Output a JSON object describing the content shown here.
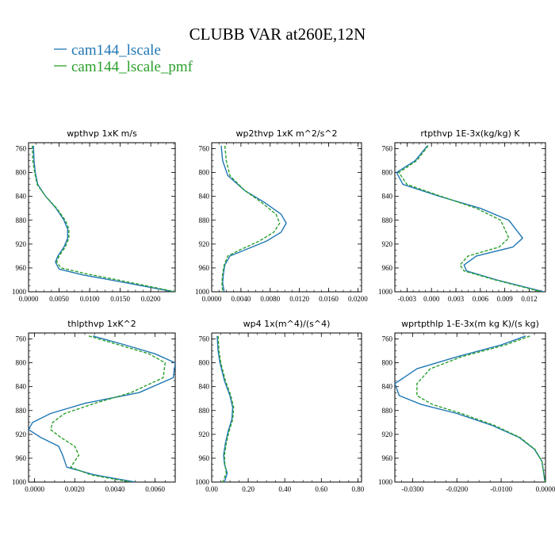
{
  "title": "CLUBB VAR at260E,12N",
  "legend": [
    {
      "name": "cam144_lscale",
      "color": "#1f77b4"
    },
    {
      "name": "cam144_lscale_pmf",
      "color": "#2ca02c"
    }
  ],
  "chart_data": [
    {
      "type": "line",
      "title": "wpthvp  1xK m/s",
      "xlim": [
        0,
        0.024
      ],
      "xticks": [
        "0.0000",
        "0.0050",
        "0.0100",
        "0.0150",
        "0.0200"
      ],
      "xtick_values": [
        0,
        0.005,
        0.01,
        0.015,
        0.02
      ],
      "ylim": [
        1000,
        750
      ],
      "yticks": [
        "760",
        "800",
        "840",
        "880",
        "920",
        "960",
        "1000"
      ],
      "ytick_values": [
        760,
        800,
        840,
        880,
        920,
        960,
        1000
      ],
      "series": [
        {
          "name": "cam144_lscale",
          "color": "#1f77b4",
          "dash": "none",
          "x": [
            0.0008,
            0.0009,
            0.0011,
            0.0015,
            0.0028,
            0.0045,
            0.0058,
            0.0064,
            0.0064,
            0.0058,
            0.0048,
            0.0044,
            0.005,
            0.009,
            0.016,
            0.0237
          ],
          "y": [
            755,
            780,
            800,
            820,
            840,
            860,
            880,
            895,
            910,
            925,
            940,
            950,
            962,
            972,
            985,
            1000
          ]
        },
        {
          "name": "cam144_lscale_pmf",
          "color": "#2ca02c",
          "dash": "4 2",
          "x": [
            0.0006,
            0.0007,
            0.001,
            0.0014,
            0.0028,
            0.0046,
            0.006,
            0.0066,
            0.0066,
            0.006,
            0.005,
            0.0046,
            0.0053,
            0.0095,
            0.0165,
            0.024
          ],
          "y": [
            755,
            780,
            800,
            820,
            840,
            860,
            880,
            895,
            910,
            925,
            940,
            950,
            960,
            970,
            984,
            1000
          ]
        }
      ]
    },
    {
      "type": "line",
      "title": "wp2thvp  1xK m^2/s^2",
      "xlim": [
        0,
        0.0205
      ],
      "xticks": [
        "0.0000",
        "0.0040",
        "0.0080",
        "0.0120",
        "0.0160",
        "0.0200"
      ],
      "xtick_values": [
        0,
        0.004,
        0.008,
        0.012,
        0.016,
        0.02
      ],
      "ylim": [
        1000,
        750
      ],
      "yticks": [
        "760",
        "800",
        "840",
        "880",
        "920",
        "960",
        "1000"
      ],
      "ytick_values": [
        760,
        800,
        840,
        880,
        920,
        960,
        1000
      ],
      "series": [
        {
          "name": "cam144_lscale",
          "color": "#1f77b4",
          "dash": "none",
          "x": [
            0.0013,
            0.0015,
            0.0022,
            0.0045,
            0.0072,
            0.0095,
            0.0102,
            0.0095,
            0.0075,
            0.0045,
            0.0025,
            0.0018,
            0.0016,
            0.0015,
            0.0017
          ],
          "y": [
            755,
            780,
            805,
            830,
            850,
            870,
            885,
            900,
            915,
            930,
            940,
            955,
            970,
            985,
            1000
          ]
        },
        {
          "name": "cam144_lscale_pmf",
          "color": "#2ca02c",
          "dash": "4 2",
          "x": [
            0.0018,
            0.002,
            0.0025,
            0.0045,
            0.0068,
            0.0088,
            0.0093,
            0.0085,
            0.0065,
            0.0038,
            0.0022,
            0.0017,
            0.0015,
            0.0014,
            0.0015
          ],
          "y": [
            755,
            780,
            805,
            830,
            850,
            870,
            885,
            900,
            915,
            930,
            940,
            955,
            970,
            985,
            1000
          ]
        }
      ]
    },
    {
      "type": "line",
      "title": "rtpthvp  1E-3x(kg/kg) K",
      "xlim": [
        -0.0045,
        0.014
      ],
      "xticks": [
        "-0.003",
        "0.000",
        "0.003",
        "0.006",
        "0.009",
        "0.012"
      ],
      "xtick_values": [
        -0.003,
        0,
        0.003,
        0.006,
        0.009,
        0.012
      ],
      "ylim": [
        1000,
        750
      ],
      "yticks": [
        "760",
        "800",
        "840",
        "880",
        "920",
        "960",
        "1000"
      ],
      "ytick_values": [
        760,
        800,
        840,
        880,
        920,
        960,
        1000
      ],
      "series": [
        {
          "name": "cam144_lscale",
          "color": "#1f77b4",
          "dash": "none",
          "x": [
            -0.0005,
            -0.002,
            -0.0043,
            -0.0035,
            0.001,
            0.006,
            0.0095,
            0.0112,
            0.01,
            0.0055,
            0.004,
            0.0043,
            0.008,
            0.0138
          ],
          "y": [
            755,
            780,
            800,
            820,
            840,
            860,
            880,
            910,
            925,
            940,
            955,
            965,
            980,
            1000
          ]
        },
        {
          "name": "cam144_lscale_pmf",
          "color": "#2ca02c",
          "dash": "4 2",
          "x": [
            -0.0004,
            -0.0018,
            -0.004,
            -0.003,
            0.0012,
            0.0055,
            0.0085,
            0.0095,
            0.0083,
            0.0045,
            0.0035,
            0.004,
            0.0078,
            0.0135
          ],
          "y": [
            755,
            780,
            800,
            820,
            840,
            860,
            880,
            910,
            925,
            940,
            955,
            965,
            980,
            1000
          ]
        }
      ]
    },
    {
      "type": "line",
      "title": "thlpthvp  1xK^2",
      "xlim": [
        -0.0003,
        0.007
      ],
      "xticks": [
        "0.0000",
        "0.0020",
        "0.0040",
        "0.0060"
      ],
      "xtick_values": [
        0,
        0.002,
        0.004,
        0.006
      ],
      "ylim": [
        1000,
        750
      ],
      "yticks": [
        "760",
        "800",
        "840",
        "880",
        "920",
        "960",
        "1000"
      ],
      "ytick_values": [
        760,
        800,
        840,
        880,
        920,
        960,
        1000
      ],
      "series": [
        {
          "name": "cam144_lscale",
          "color": "#1f77b4",
          "dash": "none",
          "x": [
            0.0029,
            0.0045,
            0.006,
            0.007,
            0.0069,
            0.0052,
            0.0025,
            0.0008,
            -0.0001,
            -0.0003,
            0.0003,
            0.0012,
            0.0014,
            0.0016,
            0.003,
            0.005
          ],
          "y": [
            755,
            770,
            785,
            800,
            825,
            850,
            868,
            885,
            900,
            912,
            925,
            940,
            955,
            975,
            988,
            1000
          ]
        },
        {
          "name": "cam144_lscale_pmf",
          "color": "#2ca02c",
          "dash": "4 2",
          "x": [
            0.0027,
            0.0042,
            0.0057,
            0.0065,
            0.0064,
            0.0048,
            0.003,
            0.0015,
            0.0009,
            0.0008,
            0.0013,
            0.002,
            0.0022,
            0.0018,
            0.0028,
            0.0048
          ],
          "y": [
            755,
            770,
            785,
            800,
            825,
            850,
            868,
            885,
            900,
            912,
            925,
            940,
            955,
            975,
            988,
            1000
          ]
        }
      ]
    },
    {
      "type": "line",
      "title": "wp4  1x(m^4)/(s^4)",
      "xlim": [
        0,
        0.82
      ],
      "xticks": [
        "0.00",
        "0.20",
        "0.40",
        "0.60",
        "0.80"
      ],
      "xtick_values": [
        0,
        0.2,
        0.4,
        0.6,
        0.8
      ],
      "ylim": [
        1000,
        750
      ],
      "yticks": [
        "760",
        "800",
        "840",
        "880",
        "920",
        "960",
        "1000"
      ],
      "ytick_values": [
        760,
        800,
        840,
        880,
        920,
        960,
        1000
      ],
      "series": [
        {
          "name": "cam144_lscale",
          "color": "#1f77b4",
          "dash": "none",
          "x": [
            0.03,
            0.035,
            0.045,
            0.07,
            0.1,
            0.115,
            0.11,
            0.09,
            0.075,
            0.065,
            0.07,
            0.085,
            0.07
          ],
          "y": [
            755,
            780,
            800,
            830,
            855,
            875,
            895,
            915,
            935,
            955,
            970,
            985,
            1000
          ]
        },
        {
          "name": "cam144_lscale_pmf",
          "color": "#2ca02c",
          "dash": "4 2",
          "x": [
            0.035,
            0.04,
            0.05,
            0.075,
            0.105,
            0.12,
            0.115,
            0.095,
            0.08,
            0.07,
            0.072,
            0.08,
            0.06
          ],
          "y": [
            755,
            780,
            800,
            830,
            855,
            875,
            895,
            915,
            935,
            955,
            970,
            985,
            1000
          ]
        }
      ]
    },
    {
      "type": "line",
      "title": "wprtpthlp  1-E-3x(m kg K)/(s kg)",
      "xlim": [
        -0.034,
        0
      ],
      "xticks": [
        "-0.0300",
        "-0.0200",
        "-0.0100",
        "0.0000"
      ],
      "xtick_values": [
        -0.03,
        -0.02,
        -0.01,
        0
      ],
      "ylim": [
        1000,
        750
      ],
      "yticks": [
        "760",
        "800",
        "840",
        "880",
        "920",
        "960",
        "1000"
      ],
      "ytick_values": [
        760,
        800,
        840,
        880,
        920,
        960,
        1000
      ],
      "series": [
        {
          "name": "cam144_lscale",
          "color": "#1f77b4",
          "dash": "none",
          "x": [
            -0.0045,
            -0.01,
            -0.02,
            -0.029,
            -0.034,
            -0.033,
            -0.028,
            -0.02,
            -0.012,
            -0.006,
            -0.0025,
            -0.0008,
            -0.0001
          ],
          "y": [
            755,
            770,
            790,
            810,
            835,
            855,
            870,
            885,
            905,
            925,
            945,
            965,
            1000
          ]
        },
        {
          "name": "cam144_lscale_pmf",
          "color": "#2ca02c",
          "dash": "4 2",
          "x": [
            -0.0035,
            -0.009,
            -0.019,
            -0.026,
            -0.029,
            -0.029,
            -0.0255,
            -0.019,
            -0.0115,
            -0.0058,
            -0.0024,
            -0.0008,
            -0.0001
          ],
          "y": [
            755,
            770,
            790,
            810,
            835,
            855,
            870,
            885,
            905,
            925,
            945,
            965,
            1000
          ]
        }
      ]
    }
  ]
}
